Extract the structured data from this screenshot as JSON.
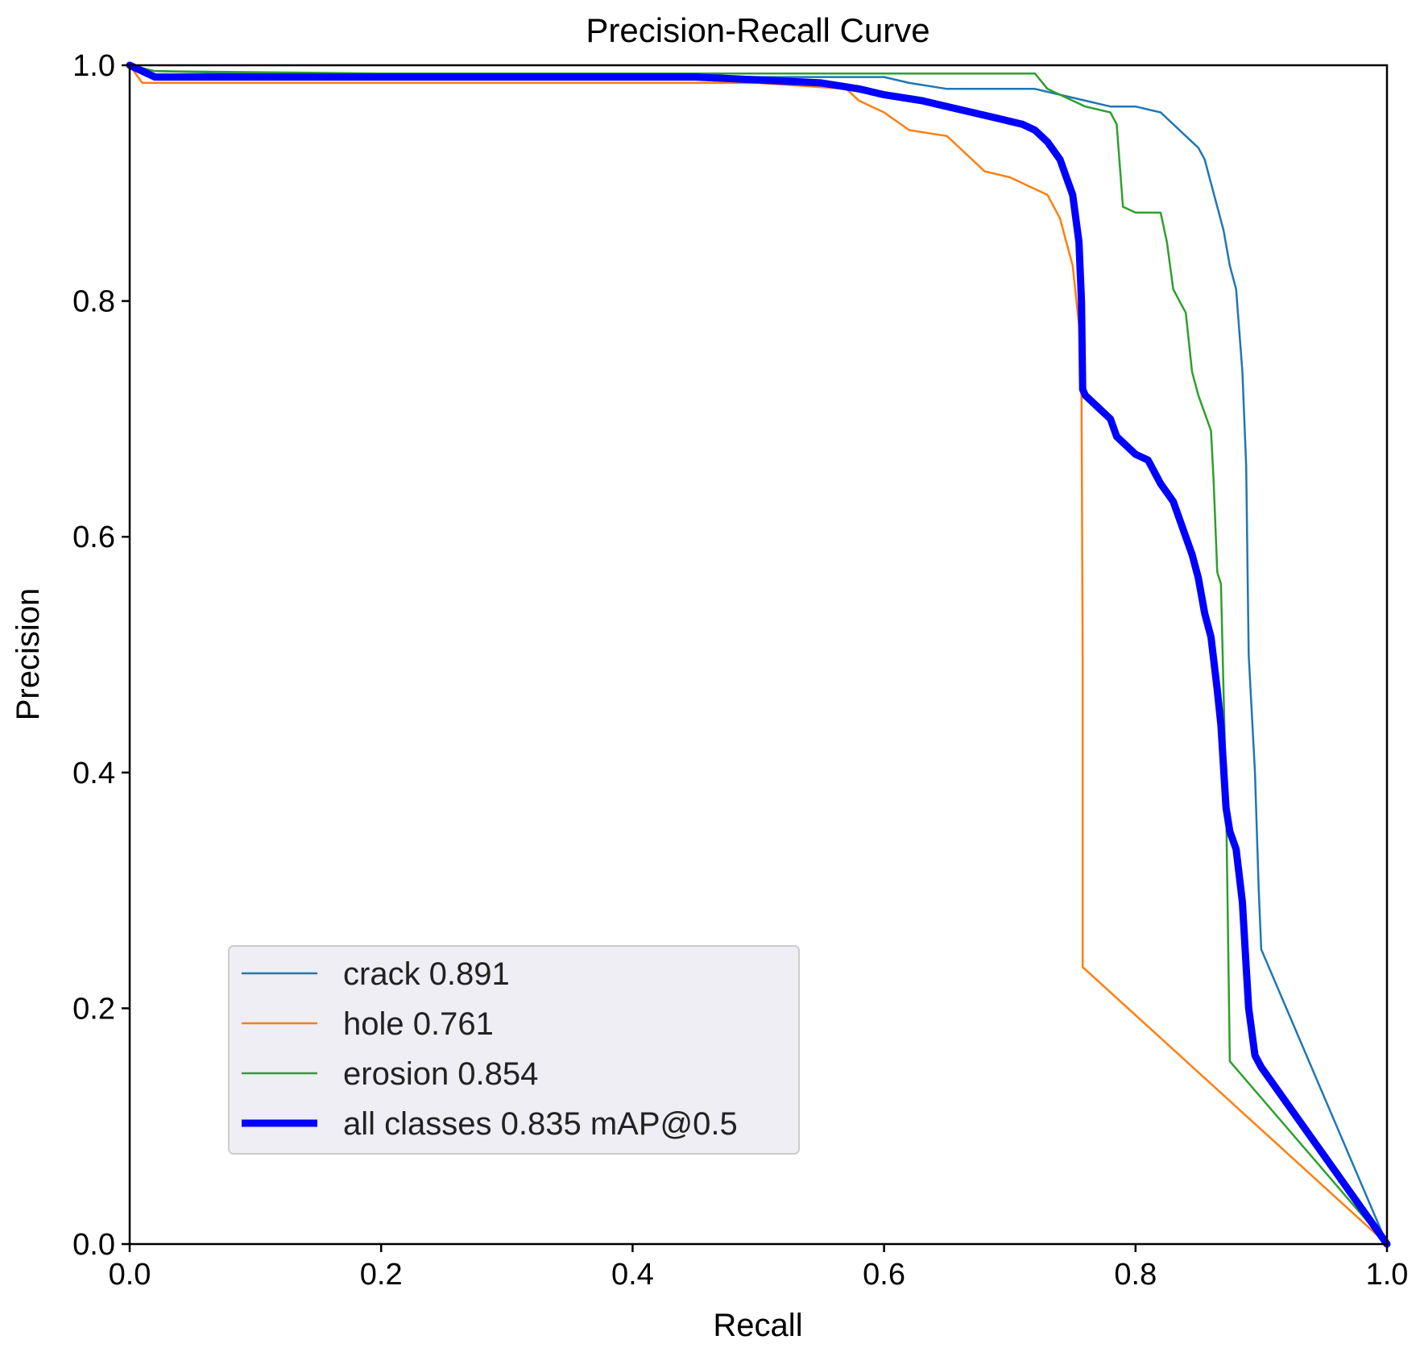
{
  "chart_data": {
    "type": "line",
    "title": "Precision-Recall Curve",
    "xlabel": "Recall",
    "ylabel": "Precision",
    "xlim": [
      0,
      1
    ],
    "ylim": [
      0,
      1
    ],
    "xticks": [
      "0.0",
      "0.2",
      "0.4",
      "0.6",
      "0.8",
      "1.0"
    ],
    "yticks": [
      "0.0",
      "0.2",
      "0.4",
      "0.6",
      "0.8",
      "1.0"
    ],
    "grid": false,
    "legend_position": "lower-left",
    "series": [
      {
        "name": "crack",
        "label": "crack 0.891",
        "color": "#1f77b4",
        "weight": "thin",
        "x": [
          0,
          0.02,
          0.1,
          0.3,
          0.5,
          0.55,
          0.6,
          0.62,
          0.65,
          0.7,
          0.72,
          0.74,
          0.76,
          0.78,
          0.8,
          0.82,
          0.84,
          0.85,
          0.855,
          0.86,
          0.865,
          0.87,
          0.875,
          0.88,
          0.885,
          0.888,
          0.89,
          0.893,
          0.895,
          0.898,
          0.9,
          1.0
        ],
        "y": [
          1.0,
          0.995,
          0.993,
          0.993,
          0.99,
          0.99,
          0.99,
          0.985,
          0.98,
          0.98,
          0.98,
          0.975,
          0.97,
          0.965,
          0.965,
          0.96,
          0.94,
          0.93,
          0.92,
          0.9,
          0.88,
          0.86,
          0.83,
          0.81,
          0.74,
          0.66,
          0.5,
          0.44,
          0.4,
          0.3,
          0.25,
          0.0
        ]
      },
      {
        "name": "hole",
        "label": "hole 0.761",
        "color": "#ff7f0e",
        "weight": "thin",
        "x": [
          0,
          0.01,
          0.05,
          0.2,
          0.4,
          0.5,
          0.57,
          0.58,
          0.59,
          0.6,
          0.62,
          0.65,
          0.67,
          0.68,
          0.7,
          0.72,
          0.73,
          0.74,
          0.745,
          0.75,
          0.755,
          0.757,
          0.758,
          0.758,
          1.0
        ],
        "y": [
          1.0,
          0.985,
          0.985,
          0.985,
          0.985,
          0.985,
          0.98,
          0.97,
          0.965,
          0.96,
          0.945,
          0.94,
          0.92,
          0.91,
          0.905,
          0.895,
          0.89,
          0.87,
          0.85,
          0.83,
          0.78,
          0.73,
          0.5,
          0.235,
          0.0
        ]
      },
      {
        "name": "erosion",
        "label": "erosion 0.854",
        "color": "#2ca02c",
        "weight": "thin",
        "x": [
          0,
          0.02,
          0.2,
          0.4,
          0.6,
          0.7,
          0.72,
          0.73,
          0.74,
          0.76,
          0.78,
          0.785,
          0.79,
          0.8,
          0.82,
          0.825,
          0.83,
          0.84,
          0.845,
          0.85,
          0.86,
          0.862,
          0.865,
          0.868,
          0.872,
          0.875,
          1.0
        ],
        "y": [
          1.0,
          0.995,
          0.993,
          0.993,
          0.993,
          0.993,
          0.993,
          0.98,
          0.975,
          0.965,
          0.96,
          0.95,
          0.88,
          0.875,
          0.875,
          0.85,
          0.81,
          0.79,
          0.74,
          0.72,
          0.69,
          0.65,
          0.57,
          0.56,
          0.38,
          0.155,
          0.0
        ]
      },
      {
        "name": "all classes",
        "label": "all classes 0.835 mAP@0.5",
        "color": "#0000ff",
        "weight": "thick",
        "x": [
          0,
          0.02,
          0.1,
          0.3,
          0.45,
          0.55,
          0.58,
          0.6,
          0.63,
          0.65,
          0.67,
          0.69,
          0.71,
          0.72,
          0.73,
          0.74,
          0.745,
          0.75,
          0.755,
          0.757,
          0.758,
          0.76,
          0.77,
          0.78,
          0.785,
          0.79,
          0.8,
          0.81,
          0.82,
          0.83,
          0.835,
          0.84,
          0.845,
          0.85,
          0.855,
          0.86,
          0.865,
          0.868,
          0.872,
          0.875,
          0.88,
          0.885,
          0.888,
          0.89,
          0.895,
          0.9,
          1.0
        ],
        "y": [
          1.0,
          0.99,
          0.99,
          0.99,
          0.99,
          0.985,
          0.98,
          0.975,
          0.97,
          0.965,
          0.96,
          0.955,
          0.95,
          0.945,
          0.935,
          0.92,
          0.905,
          0.89,
          0.85,
          0.8,
          0.725,
          0.72,
          0.71,
          0.7,
          0.685,
          0.68,
          0.67,
          0.665,
          0.645,
          0.63,
          0.615,
          0.6,
          0.585,
          0.565,
          0.535,
          0.515,
          0.47,
          0.44,
          0.37,
          0.35,
          0.335,
          0.29,
          0.235,
          0.2,
          0.16,
          0.15,
          0.0
        ]
      }
    ]
  }
}
